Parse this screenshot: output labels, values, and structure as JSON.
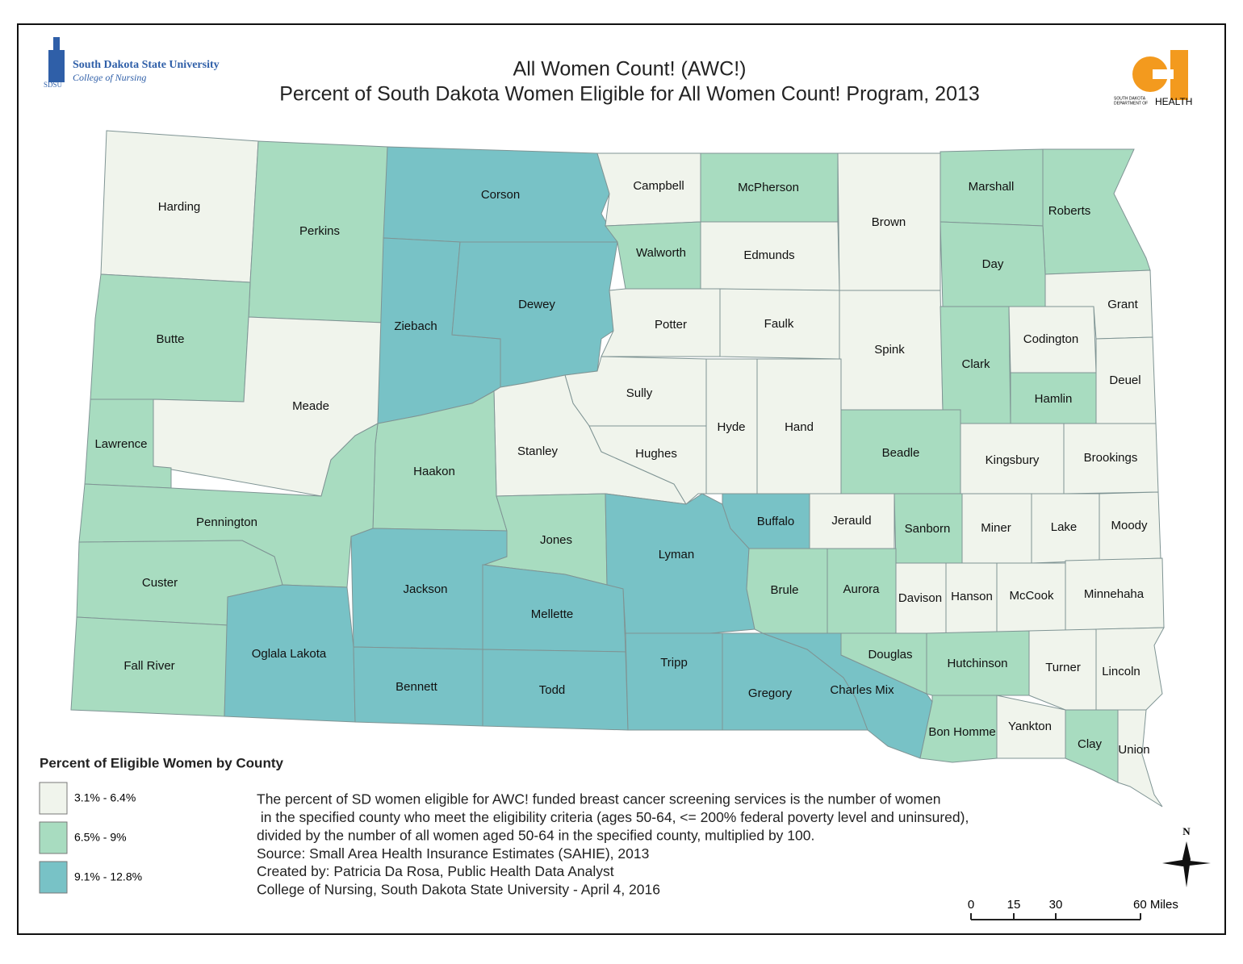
{
  "header": {
    "title": "All Women Count! (AWC!)",
    "subtitle": "Percent of South Dakota Women Eligible for All Women Count! Program, 2013",
    "logo_left": {
      "name": "South Dakota State University",
      "unit": "College of Nursing",
      "abbr": "SDSU"
    },
    "logo_right": {
      "line1": "SOUTH DAKOTA",
      "line2": "DEPARTMENT OF",
      "line3": "HEALTH"
    }
  },
  "legend": {
    "title": "Percent of Eligible Women by County",
    "classes": [
      {
        "label": "3.1% - 6.4%",
        "color": "#f0f4ec"
      },
      {
        "label": "6.5% - 9%",
        "color": "#a8dcc0"
      },
      {
        "label": "9.1% - 12.8%",
        "color": "#78c2c6"
      }
    ]
  },
  "counties": [
    {
      "name": "Harding",
      "class": 0
    },
    {
      "name": "Perkins",
      "class": 1
    },
    {
      "name": "Corson",
      "class": 2
    },
    {
      "name": "Campbell",
      "class": 0
    },
    {
      "name": "McPherson",
      "class": 1
    },
    {
      "name": "Brown",
      "class": 0
    },
    {
      "name": "Marshall",
      "class": 1
    },
    {
      "name": "Roberts",
      "class": 1
    },
    {
      "name": "Butte",
      "class": 1
    },
    {
      "name": "Meade",
      "class": 0
    },
    {
      "name": "Ziebach",
      "class": 2
    },
    {
      "name": "Dewey",
      "class": 2
    },
    {
      "name": "Walworth",
      "class": 1
    },
    {
      "name": "Edmunds",
      "class": 0
    },
    {
      "name": "Day",
      "class": 1
    },
    {
      "name": "Grant",
      "class": 0
    },
    {
      "name": "Potter",
      "class": 0
    },
    {
      "name": "Faulk",
      "class": 0
    },
    {
      "name": "Spink",
      "class": 0
    },
    {
      "name": "Clark",
      "class": 1
    },
    {
      "name": "Codington",
      "class": 0
    },
    {
      "name": "Deuel",
      "class": 0
    },
    {
      "name": "Hamlin",
      "class": 1
    },
    {
      "name": "Lawrence",
      "class": 1
    },
    {
      "name": "Sully",
      "class": 0
    },
    {
      "name": "Hyde",
      "class": 0
    },
    {
      "name": "Hand",
      "class": 0
    },
    {
      "name": "Beadle",
      "class": 1
    },
    {
      "name": "Kingsbury",
      "class": 0
    },
    {
      "name": "Brookings",
      "class": 0
    },
    {
      "name": "Stanley",
      "class": 0
    },
    {
      "name": "Hughes",
      "class": 0
    },
    {
      "name": "Haakon",
      "class": 1
    },
    {
      "name": "Pennington",
      "class": 1
    },
    {
      "name": "Jones",
      "class": 1
    },
    {
      "name": "Lyman",
      "class": 2
    },
    {
      "name": "Buffalo",
      "class": 2
    },
    {
      "name": "Jerauld",
      "class": 0
    },
    {
      "name": "Sanborn",
      "class": 1
    },
    {
      "name": "Miner",
      "class": 0
    },
    {
      "name": "Lake",
      "class": 0
    },
    {
      "name": "Moody",
      "class": 0
    },
    {
      "name": "Custer",
      "class": 1
    },
    {
      "name": "Jackson",
      "class": 2
    },
    {
      "name": "Mellette",
      "class": 2
    },
    {
      "name": "Brule",
      "class": 1
    },
    {
      "name": "Aurora",
      "class": 1
    },
    {
      "name": "Davison",
      "class": 0
    },
    {
      "name": "Hanson",
      "class": 0
    },
    {
      "name": "McCook",
      "class": 0
    },
    {
      "name": "Minnehaha",
      "class": 0
    },
    {
      "name": "Fall River",
      "class": 1
    },
    {
      "name": "Oglala Lakota",
      "class": 2
    },
    {
      "name": "Bennett",
      "class": 2
    },
    {
      "name": "Todd",
      "class": 2
    },
    {
      "name": "Tripp",
      "class": 2
    },
    {
      "name": "Gregory",
      "class": 2
    },
    {
      "name": "Charles Mix",
      "class": 2
    },
    {
      "name": "Douglas",
      "class": 1
    },
    {
      "name": "Hutchinson",
      "class": 1
    },
    {
      "name": "Turner",
      "class": 0
    },
    {
      "name": "Lincoln",
      "class": 0
    },
    {
      "name": "Bon Homme",
      "class": 1
    },
    {
      "name": "Yankton",
      "class": 0
    },
    {
      "name": "Clay",
      "class": 1
    },
    {
      "name": "Union",
      "class": 0
    }
  ],
  "notes": [
    "The percent of SD women eligible for AWC! funded breast cancer screening services is the number of women",
    " in the specified county who meet the eligibility criteria (ages 50-64, <= 200% federal poverty level and uninsured),",
    "divided by the number of all women aged 50-64 in the specified county, multiplied by 100.",
    "Source: Small Area Health Insurance Estimates (SAHIE), 2013",
    "Created by: Patricia Da Rosa, Public Health Data Analyst",
    "College of Nursing, South Dakota State University - April 4, 2016"
  ],
  "scale_bar": {
    "labels": [
      "0",
      "15",
      "30",
      "60 Miles"
    ]
  },
  "north": "N"
}
